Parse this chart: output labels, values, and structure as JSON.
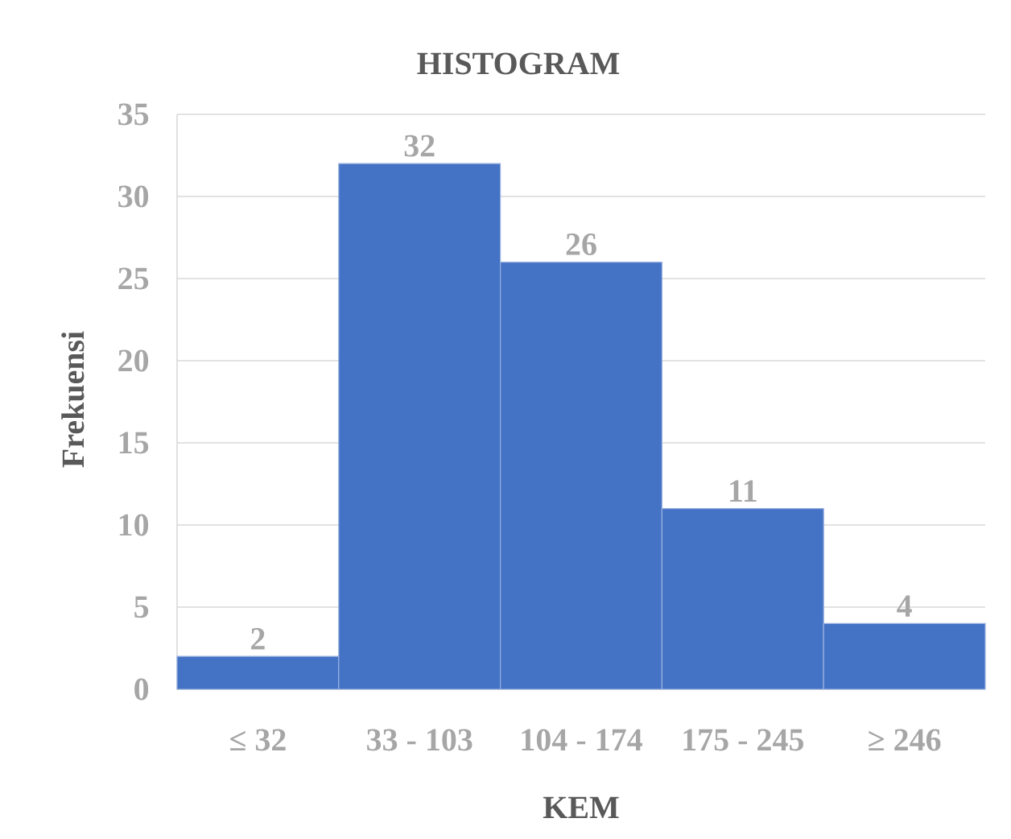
{
  "chart_data": {
    "type": "bar",
    "title": "HISTOGRAM",
    "xlabel": "KEM",
    "ylabel": "Frekuensi",
    "categories": [
      "≤ 32",
      "33 - 103",
      "104  - 174",
      "175  - 245",
      "≥ 246"
    ],
    "values": [
      2,
      32,
      26,
      11,
      4
    ],
    "color": "#4472c4",
    "ylim": [
      0,
      35
    ],
    "yticks": [
      0,
      5,
      10,
      15,
      20,
      25,
      30,
      35
    ],
    "grid": "y",
    "data_labels": true
  }
}
